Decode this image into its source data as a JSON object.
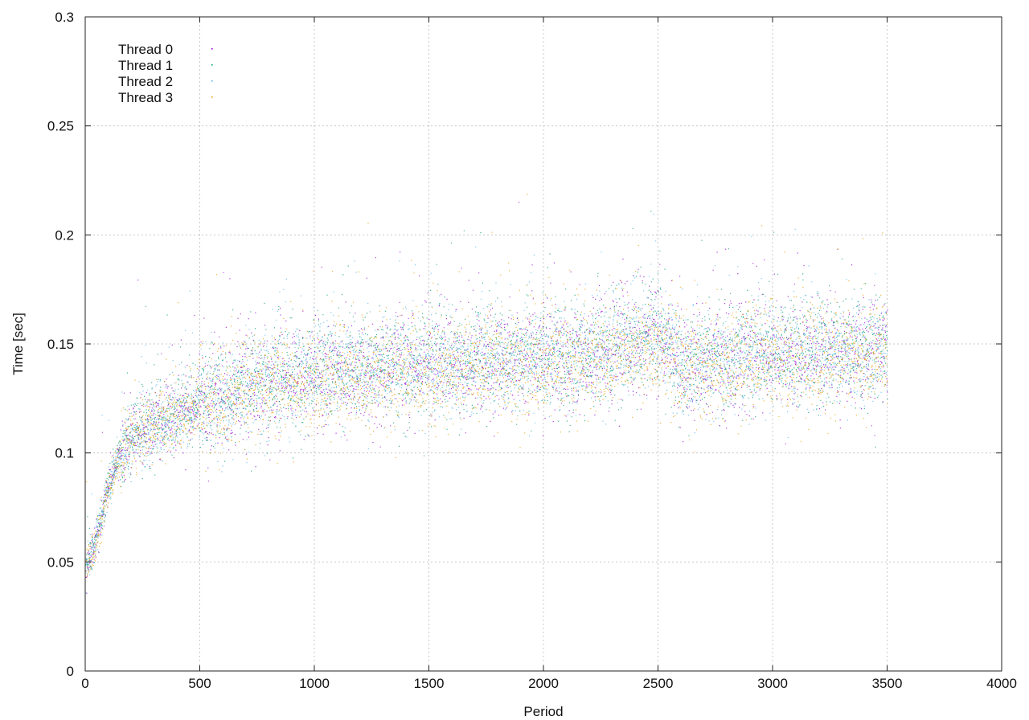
{
  "chart_data": {
    "type": "scatter",
    "xlabel": "Period",
    "ylabel": "Time [sec]",
    "xlim": [
      0,
      4000
    ],
    "ylim": [
      0,
      0.3
    ],
    "x_ticks": [
      "0",
      "500",
      "1000",
      "1500",
      "2000",
      "2500",
      "3000",
      "3500",
      "4000"
    ],
    "y_ticks": [
      "0",
      "0.05",
      "0.1",
      "0.15",
      "0.2",
      "0.25",
      "0.3"
    ],
    "grid": true,
    "legend_position": "top-left",
    "series": [
      {
        "name": "Thread 0",
        "color": "#9400d3",
        "trend": [
          [
            0,
            0.046
          ],
          [
            50,
            0.062
          ],
          [
            100,
            0.085
          ],
          [
            150,
            0.1
          ],
          [
            200,
            0.108
          ],
          [
            300,
            0.113
          ],
          [
            400,
            0.118
          ],
          [
            500,
            0.122
          ],
          [
            600,
            0.126
          ],
          [
            700,
            0.13
          ],
          [
            800,
            0.132
          ],
          [
            1000,
            0.135
          ],
          [
            1200,
            0.138
          ],
          [
            1500,
            0.14
          ],
          [
            1800,
            0.142
          ],
          [
            2000,
            0.143
          ],
          [
            2200,
            0.144
          ],
          [
            2400,
            0.15
          ],
          [
            2500,
            0.153
          ],
          [
            2600,
            0.14
          ],
          [
            2800,
            0.142
          ],
          [
            3000,
            0.146
          ],
          [
            3200,
            0.145
          ],
          [
            3500,
            0.148
          ]
        ]
      },
      {
        "name": "Thread 1",
        "color": "#009e73",
        "trend": [
          [
            0,
            0.047
          ],
          [
            50,
            0.063
          ],
          [
            100,
            0.086
          ],
          [
            150,
            0.101
          ],
          [
            200,
            0.109
          ],
          [
            300,
            0.114
          ],
          [
            400,
            0.119
          ],
          [
            500,
            0.123
          ],
          [
            600,
            0.127
          ],
          [
            700,
            0.131
          ],
          [
            800,
            0.133
          ],
          [
            1000,
            0.136
          ],
          [
            1200,
            0.139
          ],
          [
            1500,
            0.141
          ],
          [
            1800,
            0.143
          ],
          [
            2000,
            0.144
          ],
          [
            2200,
            0.145
          ],
          [
            2400,
            0.152
          ],
          [
            2500,
            0.156
          ],
          [
            2600,
            0.141
          ],
          [
            2800,
            0.143
          ],
          [
            3000,
            0.147
          ],
          [
            3200,
            0.146
          ],
          [
            3500,
            0.149
          ]
        ]
      },
      {
        "name": "Thread 2",
        "color": "#56b4e9",
        "trend": [
          [
            0,
            0.046
          ],
          [
            50,
            0.061
          ],
          [
            100,
            0.084
          ],
          [
            150,
            0.099
          ],
          [
            200,
            0.107
          ],
          [
            300,
            0.113
          ],
          [
            400,
            0.118
          ],
          [
            500,
            0.122
          ],
          [
            600,
            0.126
          ],
          [
            700,
            0.129
          ],
          [
            800,
            0.132
          ],
          [
            1000,
            0.135
          ],
          [
            1200,
            0.138
          ],
          [
            1500,
            0.14
          ],
          [
            1800,
            0.142
          ],
          [
            2000,
            0.143
          ],
          [
            2200,
            0.144
          ],
          [
            2400,
            0.151
          ],
          [
            2500,
            0.154
          ],
          [
            2600,
            0.14
          ],
          [
            2800,
            0.142
          ],
          [
            3000,
            0.146
          ],
          [
            3200,
            0.145
          ],
          [
            3500,
            0.148
          ]
        ]
      },
      {
        "name": "Thread 3",
        "color": "#e69f00",
        "trend": [
          [
            0,
            0.045
          ],
          [
            50,
            0.06
          ],
          [
            100,
            0.083
          ],
          [
            150,
            0.098
          ],
          [
            200,
            0.106
          ],
          [
            300,
            0.112
          ],
          [
            400,
            0.117
          ],
          [
            500,
            0.121
          ],
          [
            600,
            0.125
          ],
          [
            700,
            0.128
          ],
          [
            800,
            0.13
          ],
          [
            1000,
            0.133
          ],
          [
            1200,
            0.136
          ],
          [
            1500,
            0.138
          ],
          [
            1800,
            0.14
          ],
          [
            2000,
            0.141
          ],
          [
            2200,
            0.142
          ],
          [
            2400,
            0.148
          ],
          [
            2500,
            0.15
          ],
          [
            2600,
            0.138
          ],
          [
            2800,
            0.14
          ],
          [
            3000,
            0.144
          ],
          [
            3200,
            0.143
          ],
          [
            3500,
            0.146
          ]
        ]
      }
    ],
    "points_per_series": 3500,
    "period_range": [
      1,
      3500
    ]
  }
}
